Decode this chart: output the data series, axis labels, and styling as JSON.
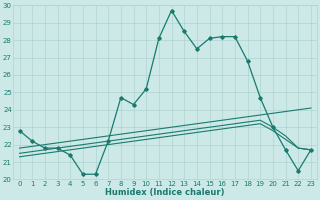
{
  "xlabel": "Humidex (Indice chaleur)",
  "bg_color": "#cce9e7",
  "line_color": "#1a7a6e",
  "grid_color": "#afd4d1",
  "xlim": [
    -0.5,
    23.5
  ],
  "ylim": [
    20,
    30
  ],
  "yticks": [
    20,
    21,
    22,
    23,
    24,
    25,
    26,
    27,
    28,
    29,
    30
  ],
  "xticks": [
    0,
    1,
    2,
    3,
    4,
    5,
    6,
    7,
    8,
    9,
    10,
    11,
    12,
    13,
    14,
    15,
    16,
    17,
    18,
    19,
    20,
    21,
    22,
    23
  ],
  "line1": [
    22.8,
    22.2,
    21.8,
    21.8,
    21.4,
    20.3,
    20.3,
    22.2,
    24.7,
    24.3,
    25.2,
    28.1,
    29.7,
    28.5,
    27.5,
    28.1,
    28.2,
    28.2,
    26.8,
    24.7,
    23.0,
    21.7,
    20.5,
    21.7
  ],
  "line2": [
    21.8,
    21.9,
    22.0,
    22.1,
    22.2,
    22.3,
    22.4,
    22.5,
    22.6,
    22.7,
    22.8,
    22.9,
    23.0,
    23.1,
    23.2,
    23.3,
    23.4,
    23.5,
    23.6,
    23.7,
    23.8,
    23.9,
    24.0,
    24.1
  ],
  "line3": [
    21.5,
    21.6,
    21.7,
    21.8,
    21.9,
    22.0,
    22.1,
    22.2,
    22.3,
    22.4,
    22.5,
    22.6,
    22.7,
    22.8,
    22.9,
    23.0,
    23.1,
    23.2,
    23.3,
    23.4,
    23.0,
    22.5,
    21.8,
    21.7
  ],
  "line4": [
    21.3,
    21.4,
    21.5,
    21.6,
    21.7,
    21.8,
    21.9,
    22.0,
    22.1,
    22.2,
    22.3,
    22.4,
    22.5,
    22.6,
    22.7,
    22.8,
    22.9,
    23.0,
    23.1,
    23.2,
    22.8,
    22.3,
    21.8,
    21.7
  ]
}
